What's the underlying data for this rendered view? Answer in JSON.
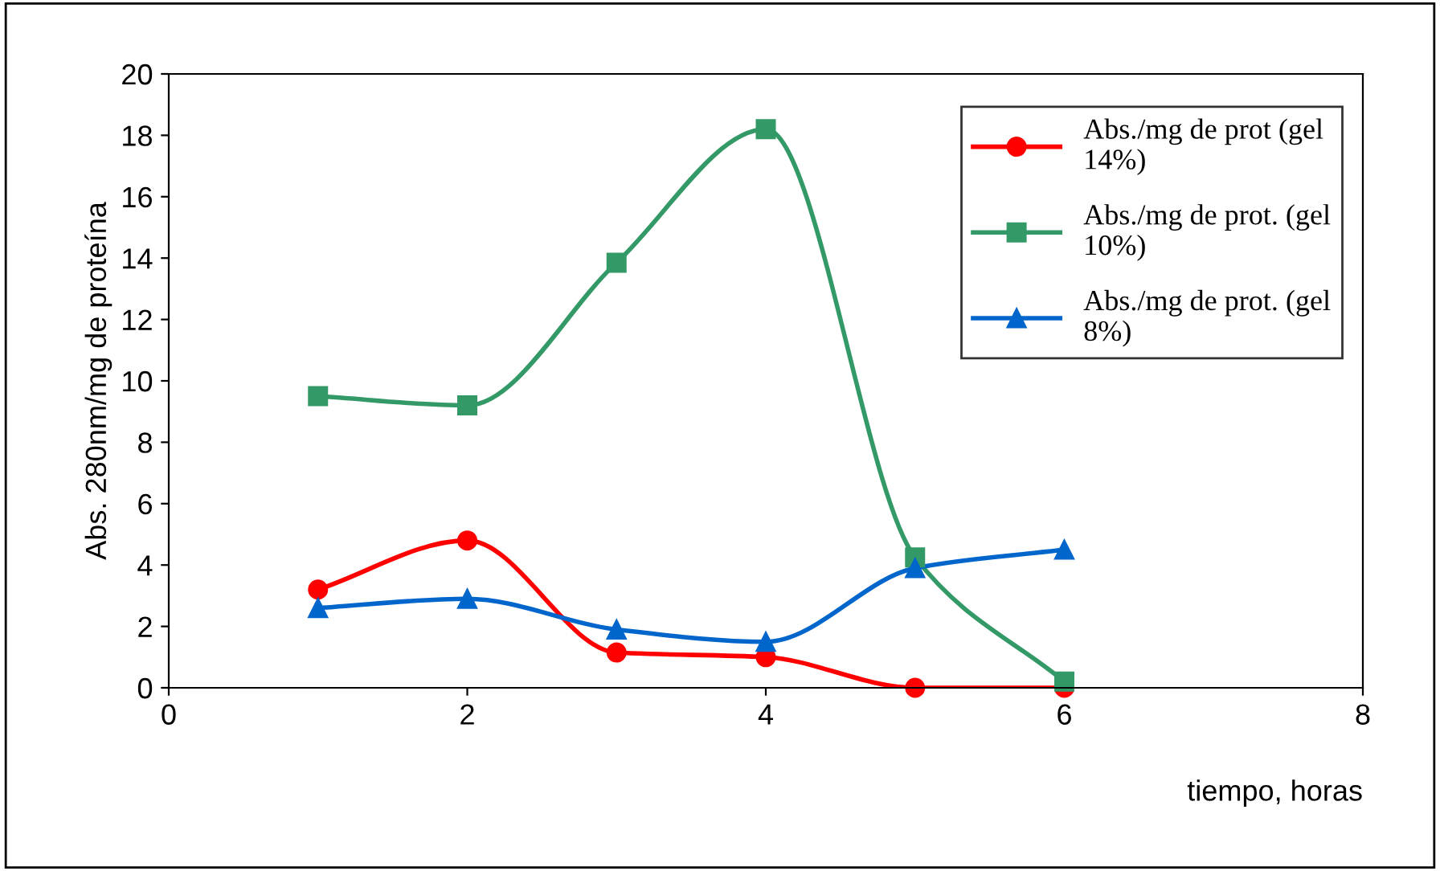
{
  "chart_data": {
    "type": "line",
    "xlabel": "tiempo, horas",
    "ylabel": "Abs. 280nm/mg de proteína",
    "x": [
      1,
      2,
      3,
      4,
      5,
      6
    ],
    "series": [
      {
        "name": "Abs./mg de prot (gel 14%)",
        "color": "#ff0000",
        "marker": "circle",
        "values": [
          3.2,
          4.8,
          1.15,
          1.0,
          0.0,
          0.0
        ]
      },
      {
        "name": "Abs./mg de prot. (gel 10%)",
        "color": "#339966",
        "marker": "square",
        "values": [
          9.5,
          9.2,
          13.85,
          18.2,
          4.25,
          0.2
        ]
      },
      {
        "name": "Abs./mg de prot. (gel 8%)",
        "color": "#0066cc",
        "marker": "triangle",
        "values": [
          2.6,
          2.9,
          1.9,
          1.5,
          3.9,
          4.5
        ]
      }
    ],
    "xlim": [
      0,
      8
    ],
    "xticks": [
      0,
      2,
      4,
      6,
      8
    ],
    "ylim": [
      0,
      20
    ],
    "yticks": [
      0,
      2,
      4,
      6,
      8,
      10,
      12,
      14,
      16,
      18,
      20
    ],
    "grid": false,
    "legend": "top right"
  }
}
